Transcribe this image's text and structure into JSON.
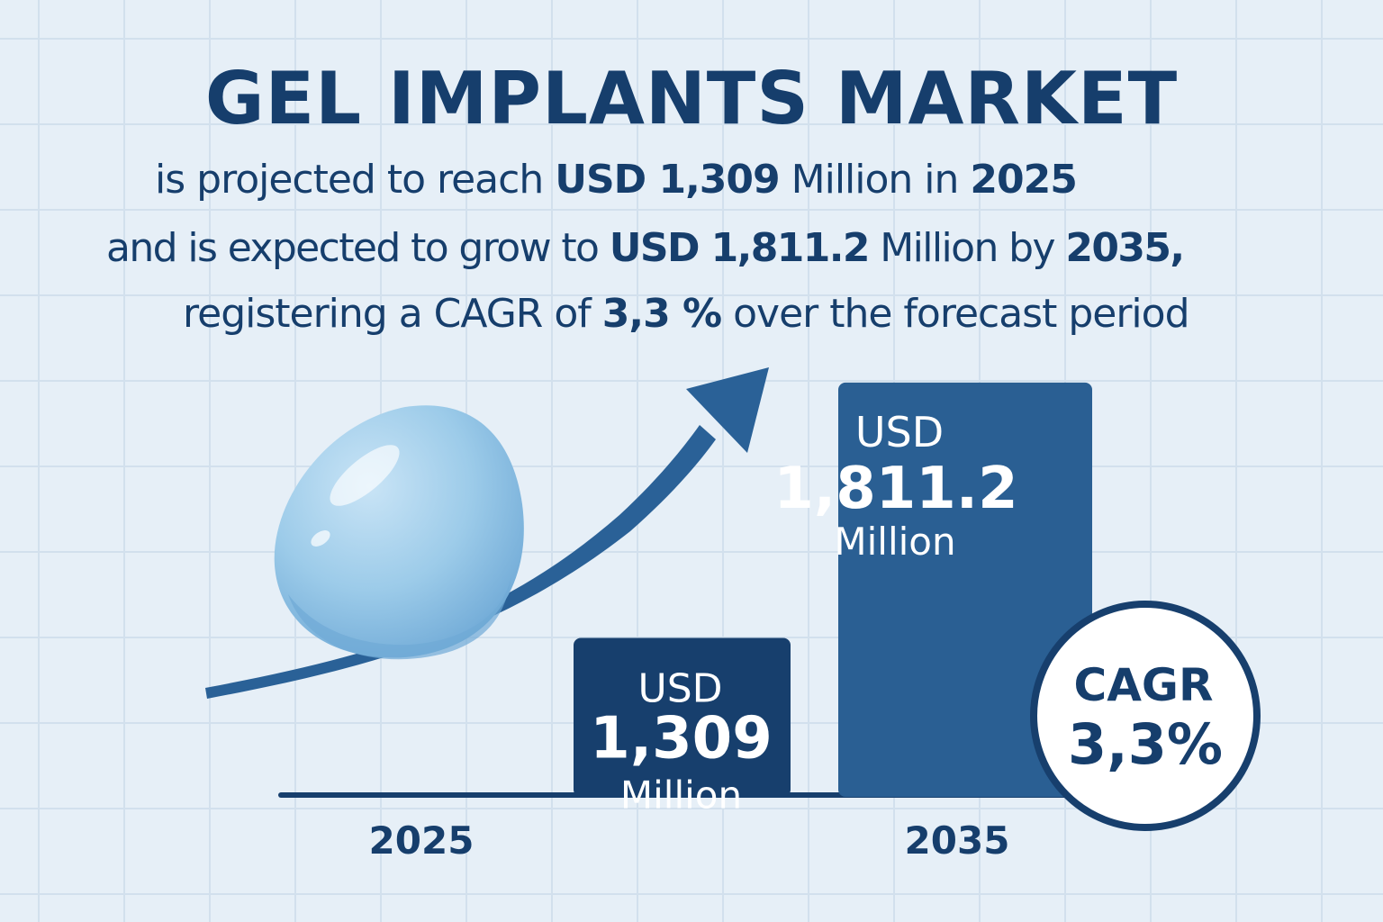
{
  "header": {
    "title": "GEL IMPLANTS MARKET",
    "line1": {
      "t1": "is projected to reach ",
      "b1": "USD 1,309",
      "t2": " Million in ",
      "b2": "2025"
    },
    "line2": {
      "t1": "and is expected to grow to ",
      "b1": "USD 1,811.2",
      "t2": " Million by ",
      "b2": "2035,"
    },
    "line3": {
      "t1": "registering a CAGR of ",
      "b1": "3,3 %",
      "t2": " over the forecast period"
    }
  },
  "chart_data": {
    "type": "bar",
    "categories": [
      "2025",
      "2035"
    ],
    "values": [
      1309,
      1811.2
    ],
    "unit_prefix": "USD",
    "unit_suffix": "Million",
    "data_labels": [
      {
        "prefix": "USD",
        "value": "1,309",
        "suffix": "Million"
      },
      {
        "prefix": "USD",
        "value": "1,811.2",
        "suffix": "Million"
      }
    ],
    "bar_colors": [
      "#173f6d",
      "#2a5f93"
    ],
    "ylim": [
      1000,
      1850
    ],
    "grid": false,
    "cagr": {
      "label": "CAGR",
      "value": "3,3%"
    }
  },
  "colors": {
    "text": "#163e6c",
    "background": "#e6eff7",
    "gridline": "#d2e0ed",
    "arrow": "#2a6197",
    "gel": "#9ccbe9"
  },
  "decor": {
    "gel_implant": "gel-implant-illustration",
    "trend_arrow": "trend-arrow-icon"
  }
}
